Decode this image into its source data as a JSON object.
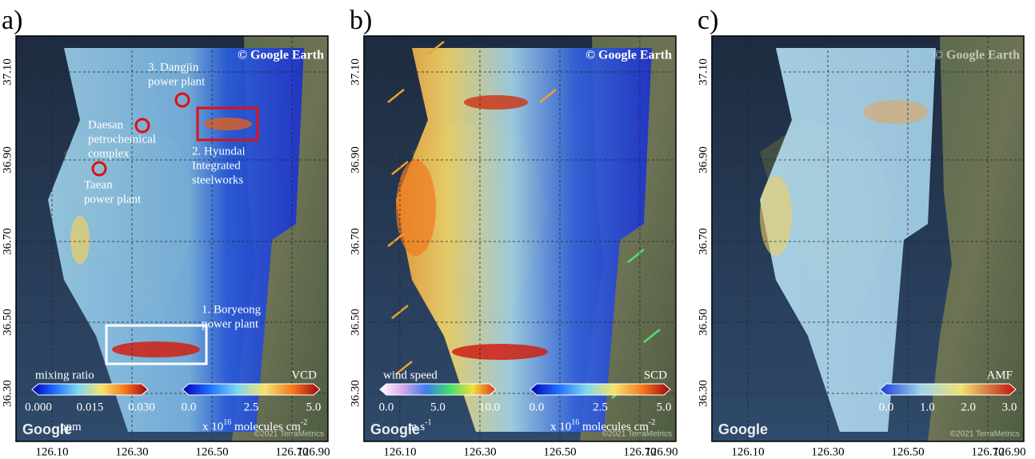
{
  "panels": [
    {
      "label": "a)",
      "lat_ticks": [
        "37.10",
        "36.90",
        "36.70",
        "36.50",
        "36.30"
      ],
      "lon_ticks": [
        "126.10",
        "126.30",
        "126.50",
        "126.70",
        "126.90"
      ],
      "credit": "© Google Earth",
      "watermark": "Google",
      "imagery": "©2021 TerraMetrics",
      "annotations": [
        {
          "lines": [
            "3. Dangjin",
            "power plant"
          ]
        },
        {
          "lines": [
            "Daesan",
            "petrochemical",
            "complex"
          ]
        },
        {
          "lines": [
            "Taean",
            "power plant"
          ]
        },
        {
          "lines": [
            "2. Hyundai",
            "Integrated",
            "steelworks"
          ]
        },
        {
          "lines": [
            "1. Boryeong",
            "power plant"
          ]
        }
      ],
      "colorbars": [
        {
          "title": "mixing ratio",
          "ticks": [
            "0.000",
            "0.015",
            "0.030"
          ],
          "unit": [
            "ppm"
          ]
        },
        {
          "title": "VCD",
          "ticks": [
            "0.0",
            "2.5",
            "5.0"
          ],
          "unit": [
            "x 10",
            "16",
            " molecules cm",
            "-2"
          ]
        }
      ]
    },
    {
      "label": "b)",
      "lat_ticks": [
        "37.10",
        "36.90",
        "36.70",
        "36.50",
        "36.30"
      ],
      "lon_ticks": [
        "126.10",
        "126.30",
        "126.50",
        "126.70",
        "126.90"
      ],
      "credit": "© Google Earth",
      "watermark": "Google",
      "imagery": "©2021 TerraMetrics",
      "annotations": [],
      "colorbars": [
        {
          "title": "wind speed",
          "ticks": [
            "0.0",
            "5.0",
            "10.0"
          ],
          "unit": [
            "m s",
            "-1"
          ]
        },
        {
          "title": "SCD",
          "ticks": [
            "0.0",
            "2.5",
            "5.0"
          ],
          "unit": [
            "x 10",
            "16",
            " molecules cm",
            "-2"
          ]
        }
      ]
    },
    {
      "label": "c)",
      "lat_ticks": [
        "37.10",
        "36.90",
        "36.70",
        "36.50",
        "36.30"
      ],
      "lon_ticks": [
        "126.10",
        "126.30",
        "126.50",
        "126.70",
        "126.90"
      ],
      "credit": "© Google Earth",
      "watermark": "Google",
      "imagery": "©2021 TerraMetrics",
      "annotations": [],
      "colorbars": [
        {
          "title": "AMF",
          "ticks": [
            "0.0",
            "1.0",
            "2.0",
            "3.0"
          ],
          "unit": []
        }
      ]
    }
  ]
}
